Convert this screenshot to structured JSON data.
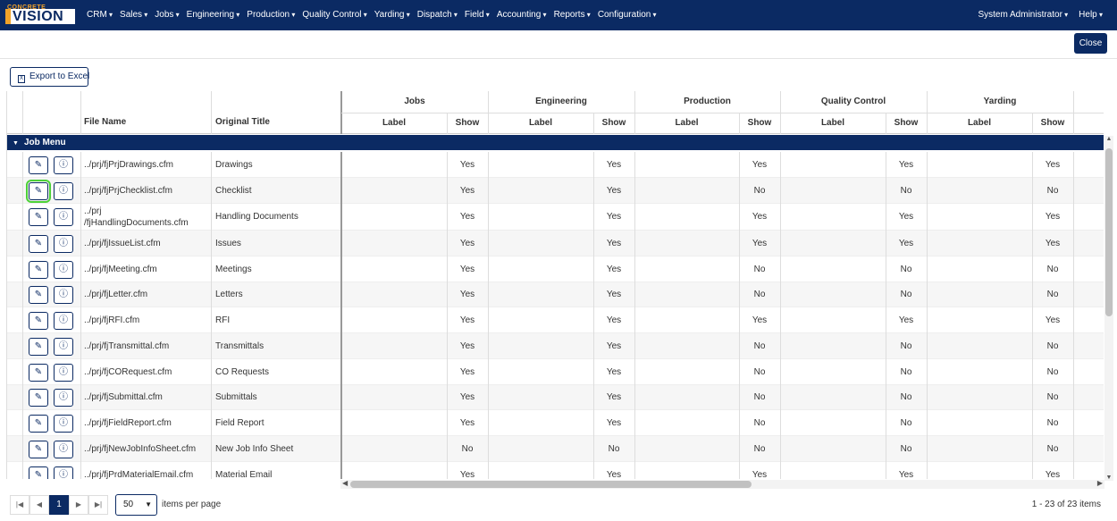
{
  "app": {
    "logo_top": "CONCRETE",
    "logo_main": "VISION"
  },
  "nav": {
    "items": [
      "CRM",
      "Sales",
      "Jobs",
      "Engineering",
      "Production",
      "Quality Control",
      "Yarding",
      "Dispatch",
      "Field",
      "Accounting",
      "Reports",
      "Configuration"
    ],
    "user": "System Administrator",
    "help": "Help"
  },
  "toolbar": {
    "close_label": "Close",
    "export_label": "Export to Excel"
  },
  "table": {
    "col_file_name": "File Name",
    "col_original_title": "Original Title",
    "groups": [
      "Jobs",
      "Engineering",
      "Production",
      "Quality Control",
      "Yarding"
    ],
    "sub_label": "Label",
    "sub_show": "Show",
    "group_row": "Job Menu",
    "rows": [
      {
        "file": "../prj/fjPrjDrawings.cfm",
        "title": "Drawings",
        "show": [
          "Yes",
          "Yes",
          "Yes",
          "Yes",
          "Yes"
        ]
      },
      {
        "file": "../prj/fjPrjChecklist.cfm",
        "title": "Checklist",
        "show": [
          "Yes",
          "Yes",
          "No",
          "No",
          "No"
        ]
      },
      {
        "file": "../prj\n/fjHandlingDocuments.cfm",
        "title": "Handling Documents",
        "show": [
          "Yes",
          "Yes",
          "Yes",
          "Yes",
          "Yes"
        ]
      },
      {
        "file": "../prj/fjIssueList.cfm",
        "title": "Issues",
        "show": [
          "Yes",
          "Yes",
          "Yes",
          "Yes",
          "Yes"
        ]
      },
      {
        "file": "../prj/fjMeeting.cfm",
        "title": "Meetings",
        "show": [
          "Yes",
          "Yes",
          "No",
          "No",
          "No"
        ]
      },
      {
        "file": "../prj/fjLetter.cfm",
        "title": "Letters",
        "show": [
          "Yes",
          "Yes",
          "No",
          "No",
          "No"
        ]
      },
      {
        "file": "../prj/fjRFI.cfm",
        "title": "RFI",
        "show": [
          "Yes",
          "Yes",
          "Yes",
          "Yes",
          "Yes"
        ]
      },
      {
        "file": "../prj/fjTransmittal.cfm",
        "title": "Transmittals",
        "show": [
          "Yes",
          "Yes",
          "No",
          "No",
          "No"
        ]
      },
      {
        "file": "../prj/fjCORequest.cfm",
        "title": "CO Requests",
        "show": [
          "Yes",
          "Yes",
          "No",
          "No",
          "No"
        ]
      },
      {
        "file": "../prj/fjSubmittal.cfm",
        "title": "Submittals",
        "show": [
          "Yes",
          "Yes",
          "No",
          "No",
          "No"
        ]
      },
      {
        "file": "../prj/fjFieldReport.cfm",
        "title": "Field Report",
        "show": [
          "Yes",
          "Yes",
          "No",
          "No",
          "No"
        ]
      },
      {
        "file": "../prj/fjNewJobInfoSheet.cfm",
        "title": "New Job Info Sheet",
        "show": [
          "No",
          "No",
          "No",
          "No",
          "No"
        ]
      },
      {
        "file": "../prj/fjPrdMaterialEmail.cfm",
        "title": "Material Email",
        "show": [
          "Yes",
          "Yes",
          "Yes",
          "Yes",
          "Yes"
        ]
      }
    ]
  },
  "pager": {
    "current_page": "1",
    "page_size": "50",
    "items_per_page": "items per page",
    "summary": "1 - 23 of 23 items"
  },
  "icons": {
    "edit": "pencil-icon",
    "info": "info-icon",
    "export": "excel-icon"
  },
  "colors": {
    "brand_navy": "#0b2a63",
    "brand_orange": "#f2a32a",
    "highlight_green": "#4cd137"
  }
}
